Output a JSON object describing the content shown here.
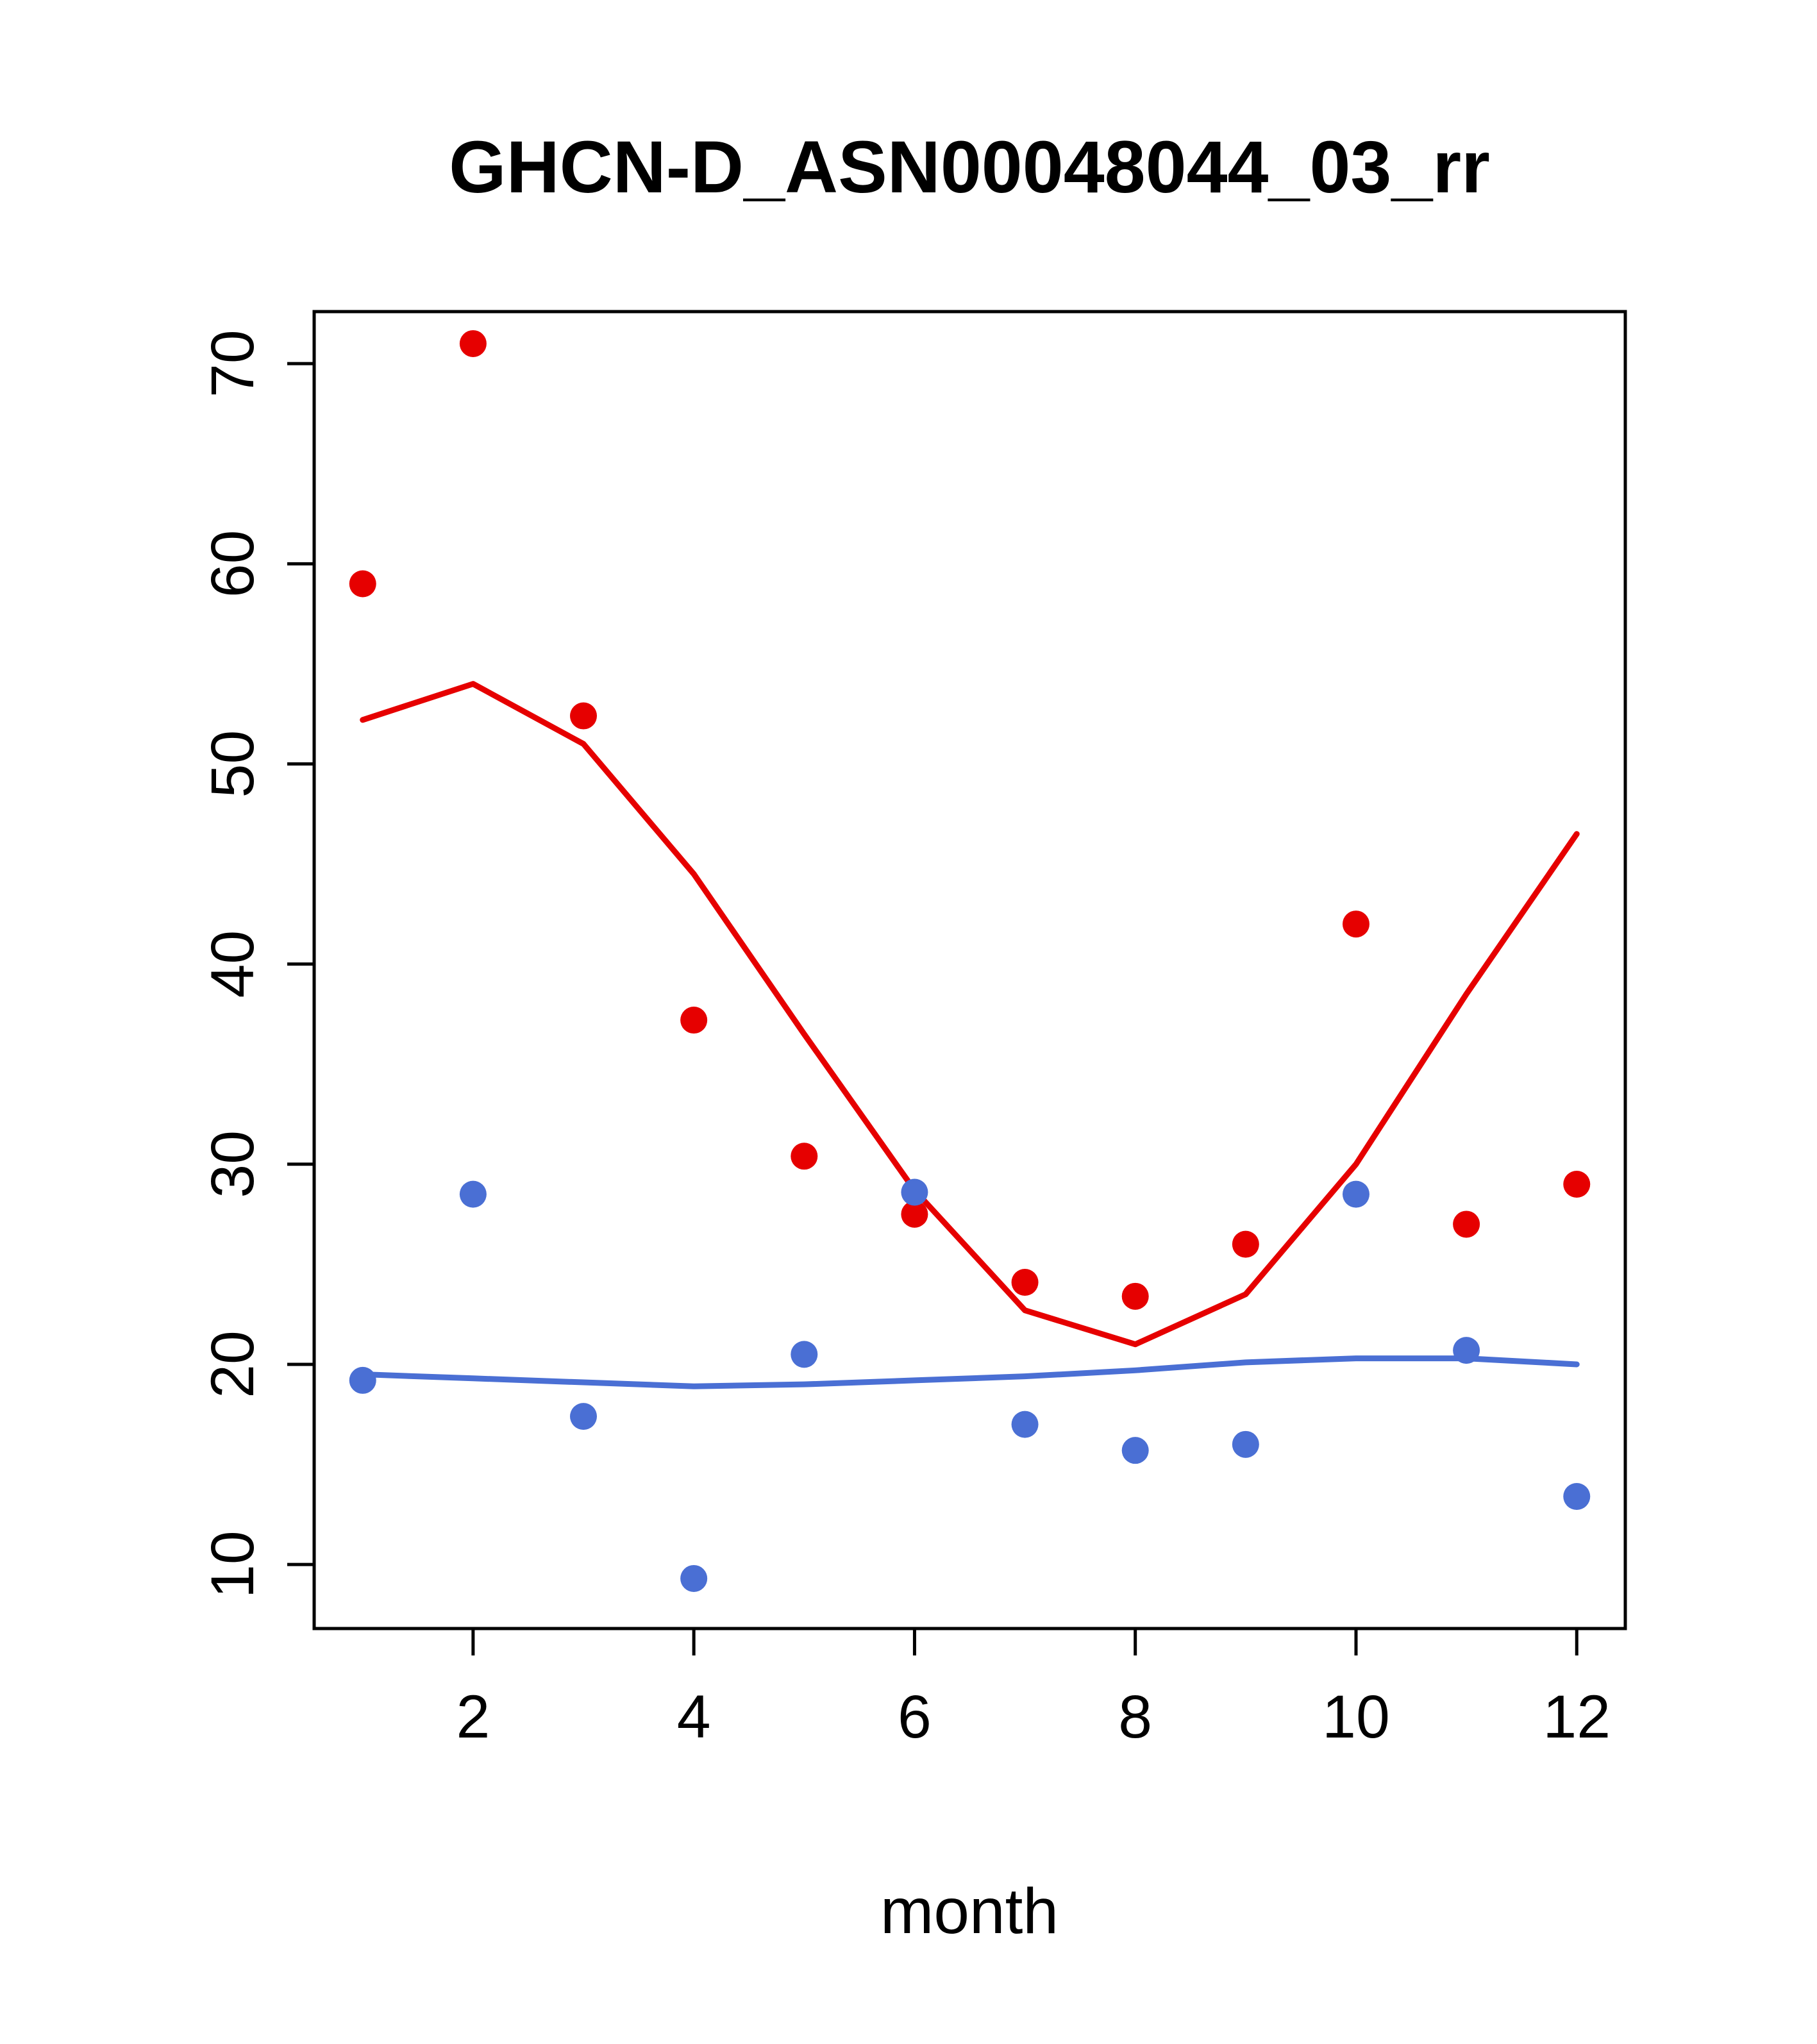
{
  "chart_data": {
    "type": "scatter",
    "title": "GHCN-D_ASN00048044_03_rr",
    "xlabel": "month",
    "ylabel": "",
    "x": [
      1,
      2,
      3,
      4,
      5,
      6,
      7,
      8,
      9,
      10,
      11,
      12
    ],
    "xlim": [
      0.56,
      12.44
    ],
    "ylim": [
      6.8,
      72.6
    ],
    "x_ticks": [
      2,
      4,
      6,
      8,
      10,
      12
    ],
    "y_ticks": [
      10,
      20,
      30,
      40,
      50,
      60,
      70
    ],
    "grid": false,
    "legend": "none",
    "series": [
      {
        "name": "red-points",
        "kind": "points",
        "color": "#e60000",
        "values": [
          59.0,
          71.0,
          52.4,
          37.2,
          30.4,
          27.5,
          24.1,
          23.4,
          26.0,
          42.0,
          27.0,
          29.0
        ]
      },
      {
        "name": "blue-points",
        "kind": "points",
        "color": "#4a6fd4",
        "values": [
          19.2,
          28.5,
          17.4,
          9.3,
          20.5,
          28.6,
          17.0,
          15.7,
          16.0,
          28.5,
          20.7,
          13.4
        ]
      },
      {
        "name": "red-smooth-line",
        "kind": "line",
        "color": "#e60000",
        "values": [
          52.2,
          54.0,
          51.0,
          44.5,
          36.5,
          28.7,
          22.7,
          21.0,
          23.5,
          30.0,
          38.5,
          46.5
        ]
      },
      {
        "name": "blue-smooth-line",
        "kind": "line",
        "color": "#4a6fd4",
        "values": [
          19.5,
          19.3,
          19.1,
          18.9,
          19.0,
          19.2,
          19.4,
          19.7,
          20.1,
          20.3,
          20.3,
          20.0
        ]
      }
    ],
    "colors": {
      "red": "#e60000",
      "blue": "#4a6fd4",
      "axis": "#000000",
      "background": "#ffffff"
    }
  }
}
